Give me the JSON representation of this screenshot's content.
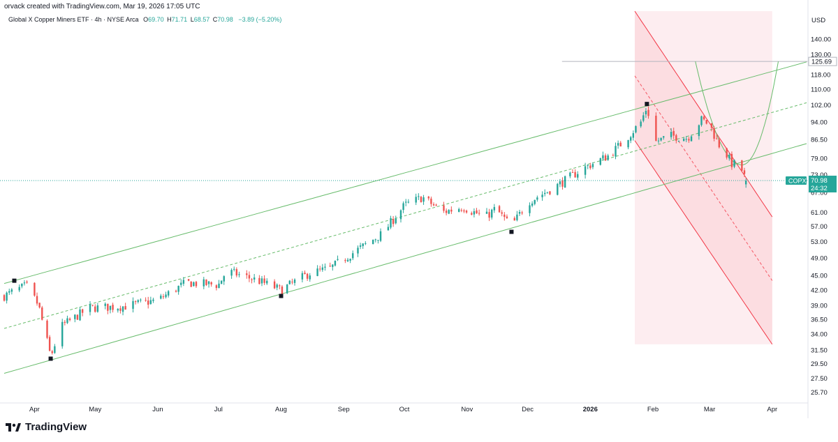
{
  "header": {
    "created_by": "orvack created with TradingView.com, Mar 19, 2026 17:05 UTC"
  },
  "legend": {
    "name": "Global X Copper Miners ETF · 4h · NYSE Arca",
    "o_label": "O",
    "o_value": "69.70",
    "h_label": "H",
    "h_value": "71.71",
    "l_label": "L",
    "l_value": "68.57",
    "c_label": "C",
    "c_value": "70.98",
    "change": "−3.89 (−5.20%)"
  },
  "price_axis": {
    "currency": "USD",
    "last_price_label": "COPX",
    "last_price": "70.98",
    "countdown": "24:32",
    "level_label": "125.69"
  },
  "branding": {
    "name": "TradingView"
  },
  "colors": {
    "up": "#26a69a",
    "down": "#ef5350",
    "channel": "#66bb6a",
    "downtrend": "#f23645",
    "downtrend_fill": "#fbd6da"
  },
  "chart_data": {
    "type": "candlestick",
    "title": "Global X Copper Miners ETF · 4h · NYSE Arca",
    "y_scale": "log",
    "y_ticks": [
      "140.00",
      "130.00",
      "118.00",
      "110.00",
      "102.00",
      "94.00",
      "86.50",
      "79.00",
      "73.00",
      "67.00",
      "61.00",
      "57.00",
      "53.00",
      "49.00",
      "45.00",
      "42.00",
      "39.00",
      "36.50",
      "34.00",
      "31.50",
      "29.50",
      "27.50",
      "25.70"
    ],
    "x_ticks": [
      "Apr",
      "May",
      "Jun",
      "Jul",
      "Aug",
      "Sep",
      "Oct",
      "Nov",
      "Dec",
      "2026",
      "Feb",
      "Mar",
      "Apr"
    ],
    "x_range": [
      "2025-03-17",
      "2026-04-18"
    ],
    "y_range": [
      24.5,
      160
    ],
    "last": {
      "date": "2026-03-19",
      "price": 70.98
    },
    "price_path": [
      {
        "date": "2025-03-17",
        "price": 40.8
      },
      {
        "date": "2025-03-28",
        "price": 42.9
      },
      {
        "date": "2025-04-03",
        "price": 39.0
      },
      {
        "date": "2025-04-09",
        "price": 30.5
      },
      {
        "date": "2025-04-14",
        "price": 35.2
      },
      {
        "date": "2025-04-28",
        "price": 38.5
      },
      {
        "date": "2025-05-15",
        "price": 38.8
      },
      {
        "date": "2025-06-01",
        "price": 40.0
      },
      {
        "date": "2025-06-15",
        "price": 43.5
      },
      {
        "date": "2025-07-01",
        "price": 43.0
      },
      {
        "date": "2025-07-05",
        "price": 46.0
      },
      {
        "date": "2025-07-20",
        "price": 44.0
      },
      {
        "date": "2025-08-01",
        "price": 42.0
      },
      {
        "date": "2025-08-15",
        "price": 45.5
      },
      {
        "date": "2025-08-25",
        "price": 46.5
      },
      {
        "date": "2025-09-05",
        "price": 50.0
      },
      {
        "date": "2025-09-20",
        "price": 55.0
      },
      {
        "date": "2025-10-01",
        "price": 63.0
      },
      {
        "date": "2025-10-10",
        "price": 65.5
      },
      {
        "date": "2025-10-20",
        "price": 61.0
      },
      {
        "date": "2025-10-30",
        "price": 62.5
      },
      {
        "date": "2025-11-10",
        "price": 59.5
      },
      {
        "date": "2025-11-15",
        "price": 62.0
      },
      {
        "date": "2025-11-23",
        "price": 57.0
      },
      {
        "date": "2025-12-01",
        "price": 64.0
      },
      {
        "date": "2025-12-15",
        "price": 69.0
      },
      {
        "date": "2025-12-28",
        "price": 75.0
      },
      {
        "date": "2026-01-10",
        "price": 80.0
      },
      {
        "date": "2026-01-18",
        "price": 86.0
      },
      {
        "date": "2026-01-26",
        "price": 94.0
      },
      {
        "date": "2026-01-29",
        "price": 101.0
      },
      {
        "date": "2026-02-02",
        "price": 85.5
      },
      {
        "date": "2026-02-10",
        "price": 88.0
      },
      {
        "date": "2026-02-18",
        "price": 87.0
      },
      {
        "date": "2026-02-25",
        "price": 95.0
      },
      {
        "date": "2026-03-01",
        "price": 93.0
      },
      {
        "date": "2026-03-05",
        "price": 85.0
      },
      {
        "date": "2026-03-09",
        "price": 81.0
      },
      {
        "date": "2026-03-12",
        "price": 77.0
      },
      {
        "date": "2026-03-16",
        "price": 76.5
      },
      {
        "date": "2026-03-19",
        "price": 70.98
      }
    ],
    "pivot_markers": [
      {
        "date": "2025-03-22",
        "price": 43.9
      },
      {
        "date": "2025-04-09",
        "price": 30.2
      },
      {
        "date": "2025-08-01",
        "price": 40.8
      },
      {
        "date": "2025-11-23",
        "price": 55.5
      },
      {
        "date": "2026-01-29",
        "price": 102.5
      }
    ],
    "horizontal_level": 125.69,
    "annotations": [
      "Rising channel (upper, middle dashed, lower)",
      "Falling channel with shaded region",
      "Parabolic arc"
    ]
  }
}
